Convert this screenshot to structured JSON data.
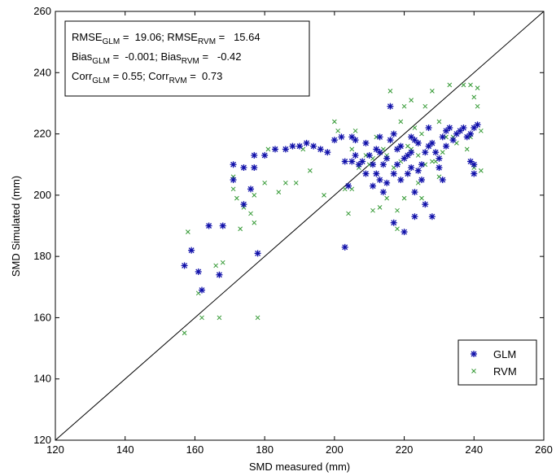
{
  "chart_data": {
    "type": "scatter",
    "xlabel": "SMD measured (mm)",
    "ylabel": "SMD Simulated (mm)",
    "xlim": [
      120,
      260
    ],
    "ylim": [
      120,
      260
    ],
    "xticks": [
      120,
      140,
      160,
      180,
      200,
      220,
      240,
      260
    ],
    "yticks": [
      120,
      140,
      160,
      180,
      200,
      220,
      240,
      260
    ],
    "grid": false,
    "legend_position": "lower-right",
    "reference_line": "1:1",
    "stats_box": {
      "line1": {
        "a": "RMSE",
        "a_sub": "GLM",
        "a_val": " =  19.06; ",
        "b": "RMSE",
        "b_sub": "RVM",
        "b_val": " =   15.64"
      },
      "line2": {
        "a": "Bias",
        "a_sub": "GLM",
        "a_val": " =  -0.001; ",
        "b": "Bias",
        "b_sub": "RVM",
        "b_val": " =   -0.42"
      },
      "line3": {
        "a": "Corr",
        "a_sub": "GLM",
        "a_val": " = 0.55; ",
        "b": "Corr",
        "b_sub": "RVM",
        "b_val": " =  0.73"
      }
    },
    "series": [
      {
        "name": "GLM",
        "marker": "asterisk",
        "color": "#1111aa",
        "points": [
          [
            157,
            177
          ],
          [
            159,
            182
          ],
          [
            161,
            175
          ],
          [
            162,
            169
          ],
          [
            164,
            190
          ],
          [
            167,
            174
          ],
          [
            168,
            190
          ],
          [
            171,
            210
          ],
          [
            171,
            205
          ],
          [
            174,
            197
          ],
          [
            174,
            209
          ],
          [
            176,
            202
          ],
          [
            177,
            209
          ],
          [
            177,
            213
          ],
          [
            178,
            181
          ],
          [
            180,
            213
          ],
          [
            183,
            215
          ],
          [
            186,
            215
          ],
          [
            188,
            216
          ],
          [
            190,
            216
          ],
          [
            192,
            217
          ],
          [
            194,
            216
          ],
          [
            196,
            215
          ],
          [
            198,
            214
          ],
          [
            200,
            218
          ],
          [
            202,
            219
          ],
          [
            203,
            211
          ],
          [
            203,
            183
          ],
          [
            204,
            203
          ],
          [
            205,
            219
          ],
          [
            205,
            211
          ],
          [
            206,
            218
          ],
          [
            206,
            213
          ],
          [
            207,
            210
          ],
          [
            208,
            211
          ],
          [
            209,
            207
          ],
          [
            209,
            217
          ],
          [
            210,
            213
          ],
          [
            211,
            210
          ],
          [
            211,
            203
          ],
          [
            212,
            215
          ],
          [
            212,
            207
          ],
          [
            213,
            214
          ],
          [
            213,
            205
          ],
          [
            213,
            219
          ],
          [
            214,
            201
          ],
          [
            214,
            210
          ],
          [
            215,
            212
          ],
          [
            215,
            204
          ],
          [
            216,
            218
          ],
          [
            216,
            229
          ],
          [
            217,
            220
          ],
          [
            217,
            191
          ],
          [
            217,
            207
          ],
          [
            218,
            215
          ],
          [
            218,
            210
          ],
          [
            219,
            216
          ],
          [
            219,
            205
          ],
          [
            220,
            212
          ],
          [
            220,
            188
          ],
          [
            221,
            213
          ],
          [
            221,
            207
          ],
          [
            222,
            219
          ],
          [
            222,
            214
          ],
          [
            222,
            209
          ],
          [
            223,
            218
          ],
          [
            223,
            201
          ],
          [
            223,
            193
          ],
          [
            224,
            208
          ],
          [
            224,
            217
          ],
          [
            225,
            210
          ],
          [
            225,
            205
          ],
          [
            226,
            214
          ],
          [
            226,
            197
          ],
          [
            227,
            216
          ],
          [
            227,
            222
          ],
          [
            228,
            217
          ],
          [
            228,
            193
          ],
          [
            229,
            214
          ],
          [
            230,
            212
          ],
          [
            230,
            209
          ],
          [
            231,
            205
          ],
          [
            231,
            219
          ],
          [
            232,
            216
          ],
          [
            232,
            221
          ],
          [
            233,
            222
          ],
          [
            234,
            218
          ],
          [
            235,
            220
          ],
          [
            236,
            221
          ],
          [
            237,
            222
          ],
          [
            238,
            219
          ],
          [
            239,
            220
          ],
          [
            239,
            211
          ],
          [
            240,
            222
          ],
          [
            240,
            210
          ],
          [
            240,
            207
          ],
          [
            241,
            223
          ]
        ]
      },
      {
        "name": "RVM",
        "marker": "x",
        "color": "#339933",
        "points": [
          [
            157,
            155
          ],
          [
            158,
            188
          ],
          [
            161,
            168
          ],
          [
            162,
            160
          ],
          [
            166,
            177
          ],
          [
            167,
            160
          ],
          [
            168,
            178
          ],
          [
            171,
            202
          ],
          [
            171,
            206
          ],
          [
            172,
            199
          ],
          [
            173,
            189
          ],
          [
            174,
            196
          ],
          [
            176,
            194
          ],
          [
            177,
            200
          ],
          [
            177,
            191
          ],
          [
            178,
            160
          ],
          [
            180,
            204
          ],
          [
            181,
            215
          ],
          [
            184,
            201
          ],
          [
            186,
            204
          ],
          [
            189,
            204
          ],
          [
            191,
            215
          ],
          [
            193,
            208
          ],
          [
            197,
            200
          ],
          [
            200,
            224
          ],
          [
            201,
            221
          ],
          [
            203,
            202
          ],
          [
            204,
            194
          ],
          [
            205,
            202
          ],
          [
            205,
            215
          ],
          [
            206,
            221
          ],
          [
            207,
            209
          ],
          [
            208,
            211
          ],
          [
            209,
            213
          ],
          [
            210,
            210
          ],
          [
            211,
            195
          ],
          [
            211,
            212
          ],
          [
            212,
            219
          ],
          [
            213,
            196
          ],
          [
            214,
            215
          ],
          [
            215,
            213
          ],
          [
            215,
            199
          ],
          [
            216,
            234
          ],
          [
            217,
            209
          ],
          [
            218,
            189
          ],
          [
            218,
            195
          ],
          [
            219,
            224
          ],
          [
            219,
            211
          ],
          [
            220,
            229
          ],
          [
            220,
            199
          ],
          [
            221,
            216
          ],
          [
            222,
            231
          ],
          [
            222,
            215
          ],
          [
            223,
            222
          ],
          [
            224,
            204
          ],
          [
            224,
            213
          ],
          [
            225,
            220
          ],
          [
            225,
            199
          ],
          [
            226,
            229
          ],
          [
            226,
            210
          ],
          [
            227,
            216
          ],
          [
            228,
            234
          ],
          [
            228,
            211
          ],
          [
            229,
            211
          ],
          [
            230,
            224
          ],
          [
            230,
            206
          ],
          [
            231,
            214
          ],
          [
            232,
            219
          ],
          [
            233,
            236
          ],
          [
            234,
            219
          ],
          [
            235,
            217
          ],
          [
            236,
            221
          ],
          [
            237,
            236
          ],
          [
            238,
            215
          ],
          [
            239,
            219
          ],
          [
            239,
            236
          ],
          [
            240,
            232
          ],
          [
            240,
            209
          ],
          [
            241,
            235
          ],
          [
            241,
            229
          ],
          [
            242,
            221
          ],
          [
            242,
            208
          ]
        ]
      }
    ]
  }
}
